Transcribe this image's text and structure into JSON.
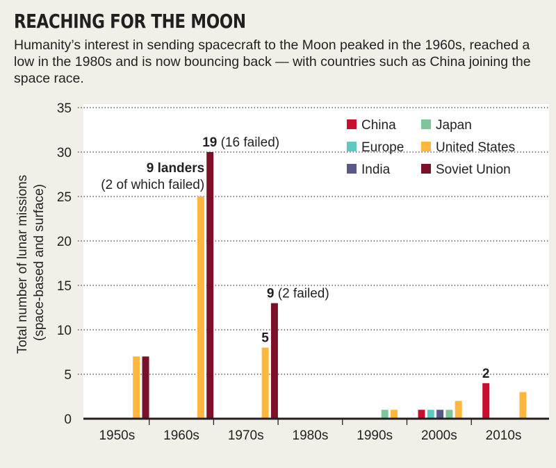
{
  "title": "REACHING FOR THE MOON",
  "subtitle": "Humanity’s interest in sending spacecraft to the Moon peaked in the 1960s, reached a low in the 1980s and is now bouncing back — with countries such as China joining the space race.",
  "chart_data": {
    "type": "bar",
    "ylabel": "Total number of lunar missions (space-based and surface)",
    "ylabel_lines": [
      "Total number of lunar missions",
      "(space-based and surface)"
    ],
    "ylim": [
      0,
      35
    ],
    "yticks": [
      0,
      5,
      10,
      15,
      20,
      25,
      30,
      35
    ],
    "grid": true,
    "legend_placement": "top-right",
    "categories": [
      "1950s",
      "1960s",
      "1970s",
      "1980s",
      "1990s",
      "2000s",
      "2010s"
    ],
    "series": [
      {
        "name": "China",
        "color": "#c8102e",
        "values": [
          0,
          0,
          0,
          0,
          0,
          1,
          4
        ]
      },
      {
        "name": "Europe",
        "color": "#5ec8c2",
        "values": [
          0,
          0,
          0,
          0,
          0,
          1,
          0
        ]
      },
      {
        "name": "India",
        "color": "#58598a",
        "values": [
          0,
          0,
          0,
          0,
          0,
          1,
          0
        ]
      },
      {
        "name": "Japan",
        "color": "#7fc59a",
        "values": [
          0,
          0,
          0,
          0,
          1,
          1,
          0
        ]
      },
      {
        "name": "United States",
        "color": "#fdb73e",
        "values": [
          7,
          25,
          8,
          0,
          1,
          2,
          3
        ]
      },
      {
        "name": "Soviet Union",
        "color": "#7b1029",
        "values": [
          7,
          30,
          13,
          0,
          0,
          0,
          0
        ]
      }
    ],
    "legend_order": [
      "China",
      "Japan",
      "Europe",
      "United States",
      "India",
      "Soviet Union"
    ],
    "annotations": [
      {
        "category": "1960s",
        "series": "Soviet Union",
        "bold": "19",
        "text": " (16 failed)"
      },
      {
        "category": "1960s",
        "series": "United States",
        "bold": "9 landers",
        "text": "(2 of which failed)"
      },
      {
        "category": "1970s",
        "series": "United States",
        "bold": "5",
        "text": ""
      },
      {
        "category": "1970s",
        "series": "Soviet Union",
        "bold": "9",
        "text": " (2 failed)"
      },
      {
        "category": "2010s",
        "series": "China",
        "bold": "2",
        "text": ""
      }
    ]
  }
}
